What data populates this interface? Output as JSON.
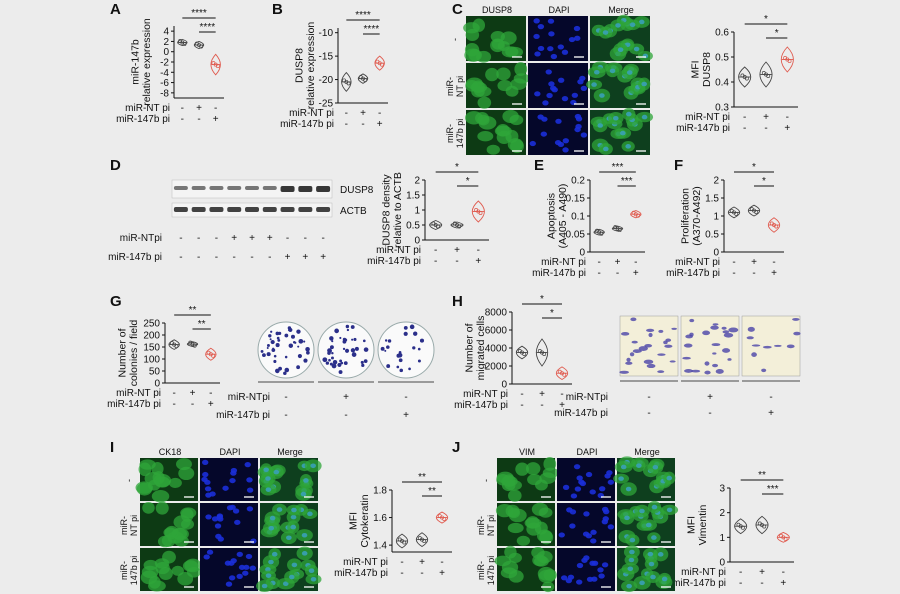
{
  "colors": {
    "background": "#ececec",
    "control": "#444444",
    "treatment": "#e05a4e",
    "green_cells": "#2fa53a",
    "blue_nuclei": "#1b2fd8",
    "colony_stain": "#2b2f8a"
  },
  "panels": [
    {
      "letter": "A"
    },
    {
      "letter": "B"
    },
    {
      "letter": "C"
    },
    {
      "letter": "D"
    },
    {
      "letter": "E"
    },
    {
      "letter": "F"
    },
    {
      "letter": "G"
    },
    {
      "letter": "H"
    },
    {
      "letter": "I"
    },
    {
      "letter": "J"
    }
  ],
  "row_labels": {
    "nt": "miR-NT pi",
    "b147": "miR-147b pi",
    "ntpi_nospace": "miR-NTpi"
  },
  "micrograph_labels": {
    "C_cols": [
      "DUSP8",
      "DAPI",
      "Merge"
    ],
    "I_cols": [
      "CK18",
      "DAPI",
      "Merge"
    ],
    "J_cols": [
      "VIM",
      "DAPI",
      "Merge"
    ],
    "rows": [
      "-",
      "miR-\nNT pi",
      "miR-\n147b pi"
    ],
    "rows_IJ": [
      "-",
      "miR-\nNT pi",
      "miR-\n147b pi"
    ]
  },
  "blot": {
    "bands": [
      "DUSP8",
      "ACTB"
    ],
    "nt_row": [
      "-",
      "-",
      "-",
      "+",
      "+",
      "+",
      "-",
      "-",
      "-"
    ],
    "b147_row": [
      "-",
      "-",
      "-",
      "-",
      "-",
      "-",
      "+",
      "+",
      "+"
    ]
  },
  "colony_signs": {
    "nt": [
      "-",
      "+",
      "-"
    ],
    "b147": [
      "-",
      "-",
      "+"
    ]
  },
  "migration_signs": {
    "nt": [
      "-",
      "+",
      "-"
    ],
    "b147": [
      "-",
      "-",
      "+"
    ]
  },
  "chart_data": [
    {
      "id": "A",
      "type": "violin",
      "ylabel": "miR-147b\nrelative expression",
      "ylim": [
        -9,
        5
      ],
      "ticks": [
        -8,
        -6,
        -4,
        -2,
        0,
        2,
        4
      ],
      "groups": [
        {
          "median": 1.8,
          "spread": 0.6
        },
        {
          "median": 1.3,
          "spread": 0.7
        },
        {
          "median": -2.5,
          "spread": 2.0
        }
      ],
      "sig": [
        {
          "from": 0,
          "to": 2,
          "label": "****"
        },
        {
          "from": 1,
          "to": 2,
          "label": "****"
        }
      ]
    },
    {
      "id": "B",
      "type": "violin",
      "ylabel": "DUSP8\nrelative expression",
      "ylim": [
        -25,
        -9
      ],
      "ticks": [
        -25,
        -20,
        -15,
        -10
      ],
      "groups": [
        {
          "median": -20.5,
          "spread": 2.0
        },
        {
          "median": -19.8,
          "spread": 1.0
        },
        {
          "median": -16.5,
          "spread": 1.5
        }
      ],
      "sig": [
        {
          "from": 0,
          "to": 2,
          "label": "****"
        },
        {
          "from": 1,
          "to": 2,
          "label": "****"
        }
      ]
    },
    {
      "id": "C",
      "type": "violin",
      "ylabel": "MFI\nDUSP8",
      "ylim": [
        0.3,
        0.6
      ],
      "ticks": [
        0.3,
        0.4,
        0.5,
        0.6
      ],
      "groups": [
        {
          "median": 0.42,
          "spread": 0.04
        },
        {
          "median": 0.43,
          "spread": 0.05
        },
        {
          "median": 0.49,
          "spread": 0.05
        }
      ],
      "sig": [
        {
          "from": 0,
          "to": 2,
          "label": "*"
        },
        {
          "from": 1,
          "to": 2,
          "label": "*"
        }
      ]
    },
    {
      "id": "D",
      "type": "violin",
      "ylabel": "DUSP8 density\nrelative to ACTB",
      "ylim": [
        0,
        2.0
      ],
      "ticks": [
        0.0,
        0.5,
        1.0,
        1.5,
        2.0
      ],
      "groups": [
        {
          "median": 0.5,
          "spread": 0.15
        },
        {
          "median": 0.5,
          "spread": 0.1
        },
        {
          "median": 0.95,
          "spread": 0.35
        }
      ],
      "sig": [
        {
          "from": 0,
          "to": 2,
          "label": "*"
        },
        {
          "from": 1,
          "to": 2,
          "label": "*"
        }
      ]
    },
    {
      "id": "E",
      "type": "violin",
      "ylabel": "Apoptosis\n(A405 - A490)",
      "ylim": [
        0,
        0.2
      ],
      "ticks": [
        0.0,
        0.05,
        0.1,
        0.15,
        0.2
      ],
      "groups": [
        {
          "median": 0.055,
          "spread": 0.008
        },
        {
          "median": 0.065,
          "spread": 0.007
        },
        {
          "median": 0.105,
          "spread": 0.01
        }
      ],
      "sig": [
        {
          "from": 0,
          "to": 2,
          "label": "***"
        },
        {
          "from": 1,
          "to": 2,
          "label": "***"
        }
      ]
    },
    {
      "id": "F",
      "type": "violin",
      "ylabel": "Proliferation\n(A370-A492)",
      "ylim": [
        0,
        2.0
      ],
      "ticks": [
        0.0,
        0.5,
        1.0,
        1.5,
        2.0
      ],
      "groups": [
        {
          "median": 1.1,
          "spread": 0.15
        },
        {
          "median": 1.15,
          "spread": 0.15
        },
        {
          "median": 0.75,
          "spread": 0.2
        }
      ],
      "sig": [
        {
          "from": 0,
          "to": 2,
          "label": "*"
        },
        {
          "from": 1,
          "to": 2,
          "label": "*"
        }
      ]
    },
    {
      "id": "G",
      "type": "violin",
      "ylabel": "Number of\ncolonies / field",
      "ylim": [
        0,
        250
      ],
      "ticks": [
        0,
        50,
        100,
        150,
        200,
        250
      ],
      "groups": [
        {
          "median": 160,
          "spread": 20
        },
        {
          "median": 162,
          "spread": 10
        },
        {
          "median": 120,
          "spread": 25
        }
      ],
      "sig": [
        {
          "from": 0,
          "to": 2,
          "label": "**"
        },
        {
          "from": 1,
          "to": 2,
          "label": "**"
        }
      ]
    },
    {
      "id": "H",
      "type": "violin",
      "ylabel": "Number of\nmigrated cells",
      "ylim": [
        0,
        8000
      ],
      "ticks": [
        0,
        2000,
        4000,
        6000,
        8000
      ],
      "groups": [
        {
          "median": 3500,
          "spread": 700
        },
        {
          "median": 3500,
          "spread": 1500
        },
        {
          "median": 1200,
          "spread": 700
        }
      ],
      "sig": [
        {
          "from": 0,
          "to": 2,
          "label": "*"
        },
        {
          "from": 1,
          "to": 2,
          "label": "*"
        }
      ]
    },
    {
      "id": "I",
      "type": "violin",
      "ylabel": "MFI\nCytokeratin",
      "ylim": [
        1.35,
        1.8
      ],
      "ticks": [
        1.4,
        1.6,
        1.8
      ],
      "groups": [
        {
          "median": 1.43,
          "spread": 0.05
        },
        {
          "median": 1.44,
          "spread": 0.05
        },
        {
          "median": 1.6,
          "spread": 0.04
        }
      ],
      "sig": [
        {
          "from": 0,
          "to": 2,
          "label": "**"
        },
        {
          "from": 1,
          "to": 2,
          "label": "**"
        }
      ]
    },
    {
      "id": "J",
      "type": "violin",
      "ylabel": "MFI\nVimentin",
      "ylim": [
        0,
        3
      ],
      "ticks": [
        0,
        1,
        2,
        3
      ],
      "groups": [
        {
          "median": 1.45,
          "spread": 0.3
        },
        {
          "median": 1.5,
          "spread": 0.35
        },
        {
          "median": 1.0,
          "spread": 0.2
        }
      ],
      "sig": [
        {
          "from": 0,
          "to": 2,
          "label": "**"
        },
        {
          "from": 1,
          "to": 2,
          "label": "***"
        }
      ]
    }
  ]
}
